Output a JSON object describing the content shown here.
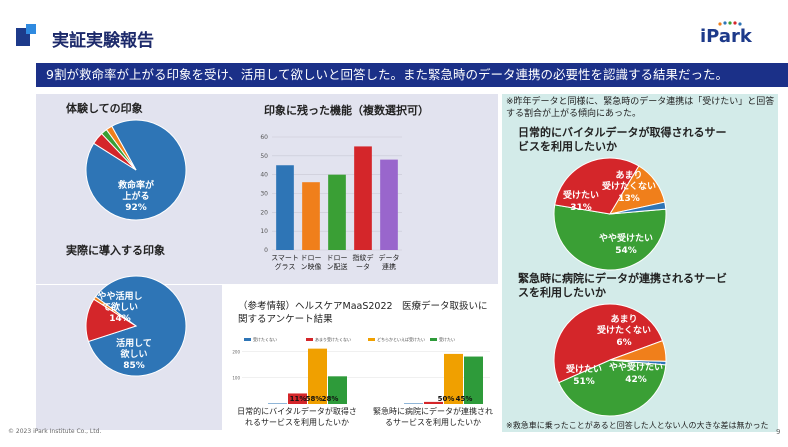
{
  "header": {
    "title": "実証実験報告",
    "logo_text": "iPark"
  },
  "banner": "9割が救命率が上がる印象を受け、活用して欲しいと回答した。また緊急時のデータ連携の必要性を認識する結果だった。",
  "experience": {
    "title": "体験しての印象",
    "label_line1": "救命率が",
    "label_line2": "上がる",
    "label_pct": "92%"
  },
  "adoption": {
    "title": "実際に導入する印象",
    "label_small1": "やや活用し",
    "label_small2": "て欲しい",
    "label_small3": "14%",
    "label_big1": "活用して",
    "label_big2": "欲しい",
    "label_big_pct": "85%"
  },
  "features": {
    "title": "印象に残った機能（複数選択可）"
  },
  "reference": {
    "title": "（参考情報）ヘルスケアMaaS2022　医療データ取扱いに関するアンケート結果",
    "cat1": "日常的にバイタルデータが取得されるサービスを利用したいか",
    "cat2": "緊急時に病院にデータが連携されるサービスを利用したいか",
    "v1a": "11%",
    "v1b": "58%",
    "v1c": "28%",
    "v2a": "50%",
    "v2b": "45%"
  },
  "right": {
    "note": "※昨年データと同様に、緊急時のデータ連携は「受けたい」と回答する割合が上がる傾向にあった。",
    "q1": "日常的にバイタルデータが取得されるサービスを利用したいか",
    "q1_a1": "受けたい",
    "q1_a1p": "31%",
    "q1_a2": "あまり",
    "q1_a2b": "受けたくない",
    "q1_a2p": "13%",
    "q1_a3": "やや受けたい",
    "q1_a3p": "54%",
    "q2": "緊急時に病院にデータが連携されるサービスを利用したいか",
    "q2_a1": "受けたい",
    "q2_a1p": "51%",
    "q2_a2": "あまり",
    "q2_a2b": "受けたくない",
    "q2_a2p": "6%",
    "q2_a3": "やや受けたい",
    "q2_a3p": "42%",
    "footnote": "※救急車に乗ったことがあると回答した人とない人の大きな差は無かった"
  },
  "footer": "© 2023 iPark Institute Co., Ltd.",
  "page_number": "9",
  "colors": {
    "navy": "#1b3088",
    "blue": "#2e75b6",
    "orange": "#f07f1b",
    "green": "#3a9f35",
    "red": "#d4262a",
    "purple": "#9966cc",
    "grey": "#9e9e9e"
  },
  "chart_data": [
    {
      "type": "pie",
      "title": "体験しての印象",
      "slices": [
        {
          "name": "救命率が上がる",
          "value": 92,
          "color": "#2e75b6"
        },
        {
          "name": "",
          "value": 4,
          "color": "#d4262a"
        },
        {
          "name": "",
          "value": 2,
          "color": "#3a9f35"
        },
        {
          "name": "",
          "value": 2,
          "color": "#f07f1b"
        }
      ]
    },
    {
      "type": "pie",
      "title": "実際に導入する印象",
      "slices": [
        {
          "name": "活用して欲しい",
          "value": 85,
          "color": "#2e75b6"
        },
        {
          "name": "やや活用して欲しい",
          "value": 14,
          "color": "#d4262a"
        },
        {
          "name": "",
          "value": 1,
          "color": "#f07f1b"
        }
      ]
    },
    {
      "type": "bar",
      "title": "印象に残った機能（複数選択可）",
      "categories": [
        "スマートグラス",
        "ドローン映像",
        "ドローン配送",
        "指紋データ",
        "データ連携"
      ],
      "values": [
        45,
        36,
        40,
        55,
        48
      ],
      "colors": [
        "#2e75b6",
        "#f07f1b",
        "#3a9f35",
        "#d4262a",
        "#9966cc"
      ],
      "ylim": [
        0,
        60
      ],
      "yticks": [
        0,
        10,
        20,
        30,
        40,
        50,
        60
      ]
    },
    {
      "type": "bar",
      "title": "（参考情報）ヘルスケアMaaS2022　医療データ取扱いに関するアンケート結果",
      "categories": [
        "日常的にバイタルデータが取得されるサービスを利用したいか",
        "緊急時に病院にデータが連携されるサービスを利用したいか"
      ],
      "legend": [
        "受けたくない",
        "あまり受けたくない",
        "どちらかといえば受けたい",
        "受けたい"
      ],
      "series": [
        {
          "name": "受けたくない",
          "values": [
            2,
            2
          ],
          "color": "#2e75b6"
        },
        {
          "name": "あまり受けたくない",
          "values": [
            40,
            8
          ],
          "color": "#d4262a"
        },
        {
          "name": "どちらかといえば受けたい",
          "values": [
            210,
            190
          ],
          "color": "#f0a000"
        },
        {
          "name": "受けたい",
          "values": [
            105,
            180
          ],
          "color": "#2e9b3a"
        }
      ],
      "ylim": [
        0,
        220
      ],
      "yticks": [
        100,
        200
      ],
      "data_labels": [
        "11%",
        "58%",
        "28%",
        "50%",
        "45%"
      ]
    },
    {
      "type": "pie",
      "title": "日常的にバイタルデータが取得されるサービスを利用したいか",
      "slices": [
        {
          "name": "やや受けたい",
          "value": 54,
          "color": "#3a9f35"
        },
        {
          "name": "受けたい",
          "value": 31,
          "color": "#d4262a"
        },
        {
          "name": "あまり受けたくない",
          "value": 13,
          "color": "#f07f1b"
        },
        {
          "name": "",
          "value": 2,
          "color": "#2e75b6"
        }
      ]
    },
    {
      "type": "pie",
      "title": "緊急時に病院にデータが連携されるサービスを利用したいか",
      "slices": [
        {
          "name": "やや受けたい",
          "value": 42,
          "color": "#3a9f35"
        },
        {
          "name": "受けたい",
          "value": 51,
          "color": "#d4262a"
        },
        {
          "name": "あまり受けたくない",
          "value": 6,
          "color": "#f07f1b"
        },
        {
          "name": "",
          "value": 1,
          "color": "#2e75b6"
        }
      ]
    }
  ]
}
